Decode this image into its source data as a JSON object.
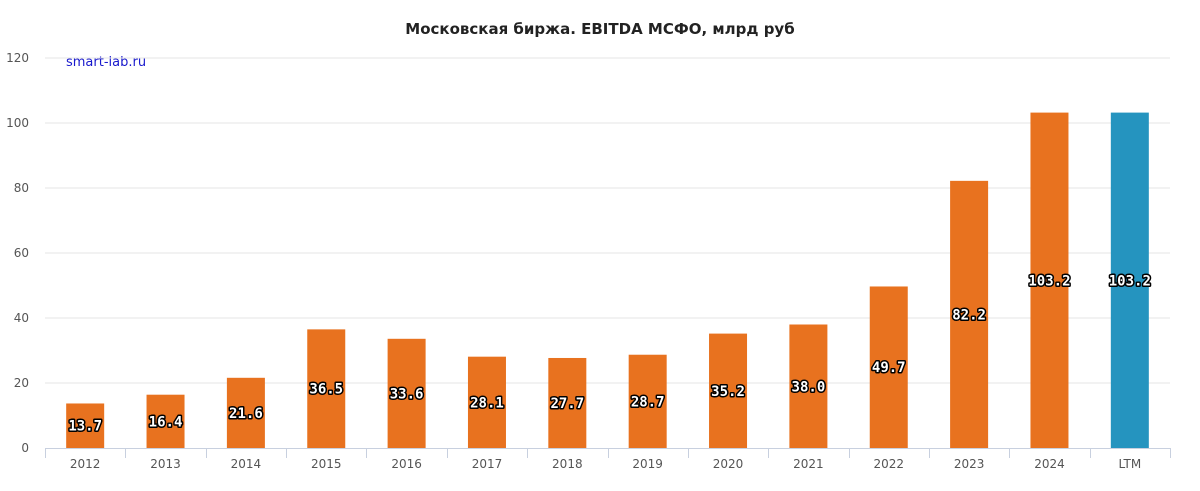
{
  "chart_data": {
    "type": "bar",
    "title": "Московская биржа. EBITDA МСФО, млрд руб",
    "watermark": "smart-lab.ru",
    "categories": [
      "2012",
      "2013",
      "2014",
      "2015",
      "2016",
      "2017",
      "2018",
      "2019",
      "2020",
      "2021",
      "2022",
      "2023",
      "2024",
      "LTM"
    ],
    "values": [
      13.7,
      16.4,
      21.6,
      36.5,
      33.6,
      28.1,
      27.7,
      28.7,
      35.2,
      38.0,
      49.7,
      82.2,
      103.2,
      103.2
    ],
    "value_labels": [
      "13.7",
      "16.4",
      "21.6",
      "36.5",
      "33.6",
      "28.1",
      "27.7",
      "28.7",
      "35.2",
      "38.0",
      "49.7",
      "82.2",
      "103.2",
      "103.2"
    ],
    "y_ticks": [
      0,
      20,
      40,
      60,
      80,
      100,
      120
    ],
    "ylim": [
      0,
      120
    ],
    "grid": true,
    "legend": "none",
    "colors": {
      "bar": "#e8721f",
      "highlight_bar": "#2594bf",
      "highlight_category": "LTM",
      "grid": "#e6e6e6",
      "axis": "#c8d0df",
      "watermark": "#1a1acd"
    }
  }
}
